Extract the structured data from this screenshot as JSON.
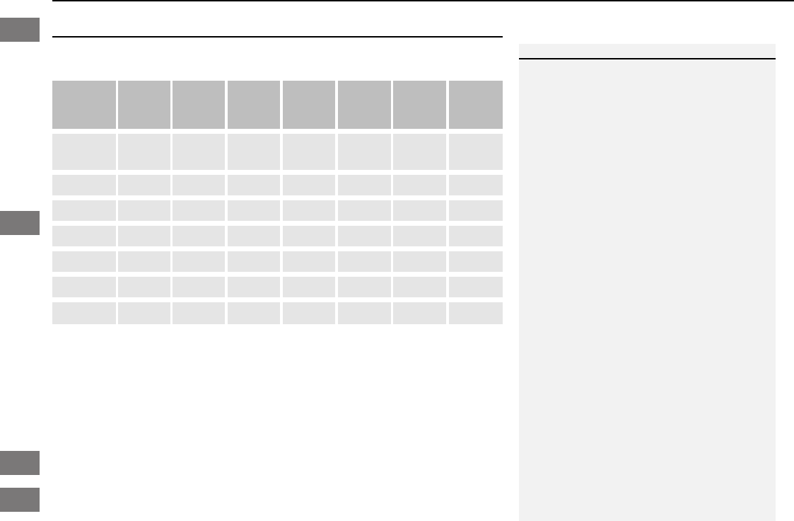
{
  "colors": {
    "tab": "#7a7878",
    "table_header": "#bebebe",
    "table_cell": "#e5e5e5",
    "side_panel": "#f2f2f2",
    "rule": "#000000"
  },
  "table": {
    "columns": 8,
    "rows": 7
  }
}
